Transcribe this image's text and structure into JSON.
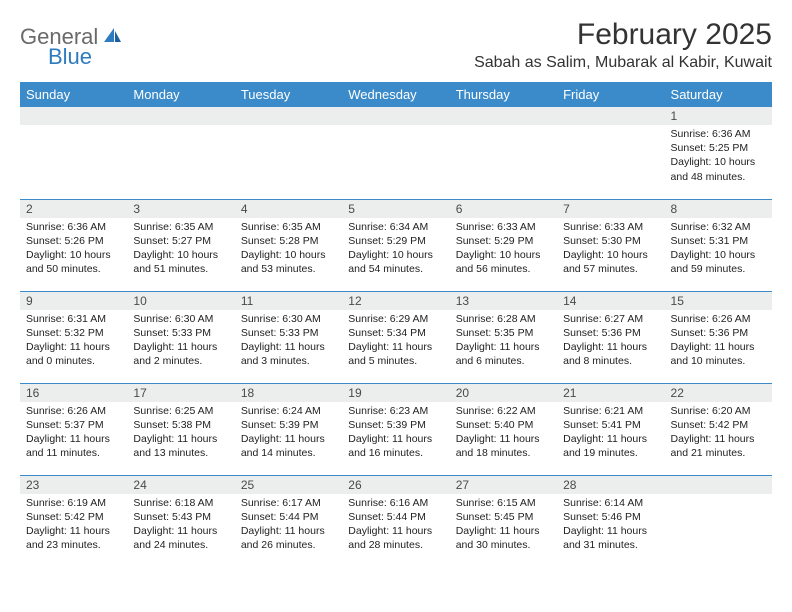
{
  "logo": {
    "text1": "General",
    "text2": "Blue"
  },
  "title": "February 2025",
  "location": "Sabah as Salim, Mubarak al Kabir, Kuwait",
  "colors": {
    "header_bg": "#3b8bca",
    "header_text": "#ffffff",
    "daynum_bg": "#eceded",
    "rule": "#3b8bca",
    "logo_gray": "#6a6a6a",
    "logo_blue": "#2f7bbf"
  },
  "columns": [
    "Sunday",
    "Monday",
    "Tuesday",
    "Wednesday",
    "Thursday",
    "Friday",
    "Saturday"
  ],
  "weeks": [
    [
      {
        "n": "",
        "sr": "",
        "ss": "",
        "dl": ""
      },
      {
        "n": "",
        "sr": "",
        "ss": "",
        "dl": ""
      },
      {
        "n": "",
        "sr": "",
        "ss": "",
        "dl": ""
      },
      {
        "n": "",
        "sr": "",
        "ss": "",
        "dl": ""
      },
      {
        "n": "",
        "sr": "",
        "ss": "",
        "dl": ""
      },
      {
        "n": "",
        "sr": "",
        "ss": "",
        "dl": ""
      },
      {
        "n": "1",
        "sr": "Sunrise: 6:36 AM",
        "ss": "Sunset: 5:25 PM",
        "dl": "Daylight: 10 hours and 48 minutes."
      }
    ],
    [
      {
        "n": "2",
        "sr": "Sunrise: 6:36 AM",
        "ss": "Sunset: 5:26 PM",
        "dl": "Daylight: 10 hours and 50 minutes."
      },
      {
        "n": "3",
        "sr": "Sunrise: 6:35 AM",
        "ss": "Sunset: 5:27 PM",
        "dl": "Daylight: 10 hours and 51 minutes."
      },
      {
        "n": "4",
        "sr": "Sunrise: 6:35 AM",
        "ss": "Sunset: 5:28 PM",
        "dl": "Daylight: 10 hours and 53 minutes."
      },
      {
        "n": "5",
        "sr": "Sunrise: 6:34 AM",
        "ss": "Sunset: 5:29 PM",
        "dl": "Daylight: 10 hours and 54 minutes."
      },
      {
        "n": "6",
        "sr": "Sunrise: 6:33 AM",
        "ss": "Sunset: 5:29 PM",
        "dl": "Daylight: 10 hours and 56 minutes."
      },
      {
        "n": "7",
        "sr": "Sunrise: 6:33 AM",
        "ss": "Sunset: 5:30 PM",
        "dl": "Daylight: 10 hours and 57 minutes."
      },
      {
        "n": "8",
        "sr": "Sunrise: 6:32 AM",
        "ss": "Sunset: 5:31 PM",
        "dl": "Daylight: 10 hours and 59 minutes."
      }
    ],
    [
      {
        "n": "9",
        "sr": "Sunrise: 6:31 AM",
        "ss": "Sunset: 5:32 PM",
        "dl": "Daylight: 11 hours and 0 minutes."
      },
      {
        "n": "10",
        "sr": "Sunrise: 6:30 AM",
        "ss": "Sunset: 5:33 PM",
        "dl": "Daylight: 11 hours and 2 minutes."
      },
      {
        "n": "11",
        "sr": "Sunrise: 6:30 AM",
        "ss": "Sunset: 5:33 PM",
        "dl": "Daylight: 11 hours and 3 minutes."
      },
      {
        "n": "12",
        "sr": "Sunrise: 6:29 AM",
        "ss": "Sunset: 5:34 PM",
        "dl": "Daylight: 11 hours and 5 minutes."
      },
      {
        "n": "13",
        "sr": "Sunrise: 6:28 AM",
        "ss": "Sunset: 5:35 PM",
        "dl": "Daylight: 11 hours and 6 minutes."
      },
      {
        "n": "14",
        "sr": "Sunrise: 6:27 AM",
        "ss": "Sunset: 5:36 PM",
        "dl": "Daylight: 11 hours and 8 minutes."
      },
      {
        "n": "15",
        "sr": "Sunrise: 6:26 AM",
        "ss": "Sunset: 5:36 PM",
        "dl": "Daylight: 11 hours and 10 minutes."
      }
    ],
    [
      {
        "n": "16",
        "sr": "Sunrise: 6:26 AM",
        "ss": "Sunset: 5:37 PM",
        "dl": "Daylight: 11 hours and 11 minutes."
      },
      {
        "n": "17",
        "sr": "Sunrise: 6:25 AM",
        "ss": "Sunset: 5:38 PM",
        "dl": "Daylight: 11 hours and 13 minutes."
      },
      {
        "n": "18",
        "sr": "Sunrise: 6:24 AM",
        "ss": "Sunset: 5:39 PM",
        "dl": "Daylight: 11 hours and 14 minutes."
      },
      {
        "n": "19",
        "sr": "Sunrise: 6:23 AM",
        "ss": "Sunset: 5:39 PM",
        "dl": "Daylight: 11 hours and 16 minutes."
      },
      {
        "n": "20",
        "sr": "Sunrise: 6:22 AM",
        "ss": "Sunset: 5:40 PM",
        "dl": "Daylight: 11 hours and 18 minutes."
      },
      {
        "n": "21",
        "sr": "Sunrise: 6:21 AM",
        "ss": "Sunset: 5:41 PM",
        "dl": "Daylight: 11 hours and 19 minutes."
      },
      {
        "n": "22",
        "sr": "Sunrise: 6:20 AM",
        "ss": "Sunset: 5:42 PM",
        "dl": "Daylight: 11 hours and 21 minutes."
      }
    ],
    [
      {
        "n": "23",
        "sr": "Sunrise: 6:19 AM",
        "ss": "Sunset: 5:42 PM",
        "dl": "Daylight: 11 hours and 23 minutes."
      },
      {
        "n": "24",
        "sr": "Sunrise: 6:18 AM",
        "ss": "Sunset: 5:43 PM",
        "dl": "Daylight: 11 hours and 24 minutes."
      },
      {
        "n": "25",
        "sr": "Sunrise: 6:17 AM",
        "ss": "Sunset: 5:44 PM",
        "dl": "Daylight: 11 hours and 26 minutes."
      },
      {
        "n": "26",
        "sr": "Sunrise: 6:16 AM",
        "ss": "Sunset: 5:44 PM",
        "dl": "Daylight: 11 hours and 28 minutes."
      },
      {
        "n": "27",
        "sr": "Sunrise: 6:15 AM",
        "ss": "Sunset: 5:45 PM",
        "dl": "Daylight: 11 hours and 30 minutes."
      },
      {
        "n": "28",
        "sr": "Sunrise: 6:14 AM",
        "ss": "Sunset: 5:46 PM",
        "dl": "Daylight: 11 hours and 31 minutes."
      },
      {
        "n": "",
        "sr": "",
        "ss": "",
        "dl": ""
      }
    ]
  ]
}
